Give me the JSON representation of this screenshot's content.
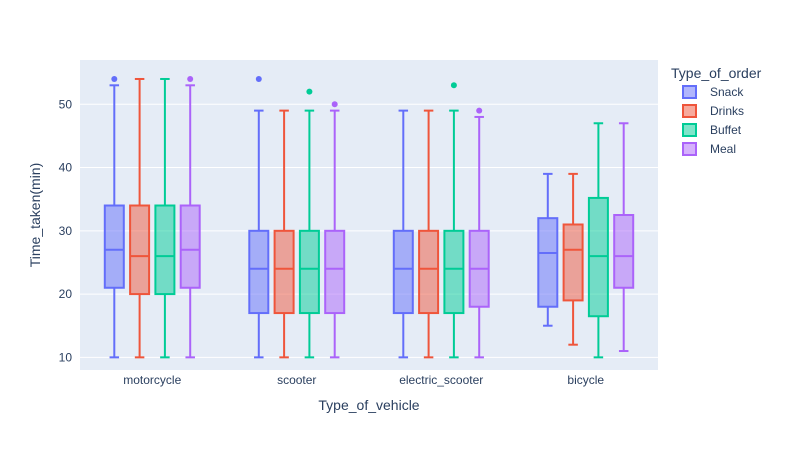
{
  "chart_data": {
    "type": "box",
    "title": "",
    "xlabel": "Type_of_vehicle",
    "ylabel": "Time_taken(min)",
    "ylim": [
      8,
      57
    ],
    "yticks": [
      10,
      20,
      30,
      40,
      50
    ],
    "grid": true,
    "legend": {
      "title": "Type_of_order",
      "placement": "right"
    },
    "categories": [
      "motorcycle",
      "scooter",
      "electric_scooter",
      "bicycle"
    ],
    "series": [
      {
        "name": "Snack",
        "color": "#636efa",
        "boxes": [
          {
            "min": 10,
            "q1": 21,
            "median": 27,
            "q3": 34,
            "max": 53,
            "outliers": [
              54
            ]
          },
          {
            "min": 10,
            "q1": 17,
            "median": 24,
            "q3": 30,
            "max": 49,
            "outliers": [
              54
            ]
          },
          {
            "min": 10,
            "q1": 17,
            "median": 24,
            "q3": 30,
            "max": 49,
            "outliers": []
          },
          {
            "min": 15,
            "q1": 18,
            "median": 26.5,
            "q3": 32,
            "max": 39,
            "outliers": []
          }
        ]
      },
      {
        "name": "Drinks",
        "color": "#ef553b",
        "boxes": [
          {
            "min": 10,
            "q1": 20,
            "median": 26,
            "q3": 34,
            "max": 54,
            "outliers": []
          },
          {
            "min": 10,
            "q1": 17,
            "median": 24,
            "q3": 30,
            "max": 49,
            "outliers": []
          },
          {
            "min": 10,
            "q1": 17,
            "median": 24,
            "q3": 30,
            "max": 49,
            "outliers": []
          },
          {
            "min": 12,
            "q1": 19,
            "median": 27,
            "q3": 31,
            "max": 39,
            "outliers": []
          }
        ]
      },
      {
        "name": "Buffet",
        "color": "#00cc96",
        "boxes": [
          {
            "min": 10,
            "q1": 20,
            "median": 26,
            "q3": 34,
            "max": 54,
            "outliers": []
          },
          {
            "min": 10,
            "q1": 17,
            "median": 24,
            "q3": 30,
            "max": 49,
            "outliers": [
              52
            ]
          },
          {
            "min": 10,
            "q1": 17,
            "median": 24,
            "q3": 30,
            "max": 49,
            "outliers": [
              53
            ]
          },
          {
            "min": 10,
            "q1": 16.5,
            "median": 26,
            "q3": 35.2,
            "max": 47,
            "outliers": []
          }
        ]
      },
      {
        "name": "Meal",
        "color": "#ab63fa",
        "boxes": [
          {
            "min": 10,
            "q1": 21,
            "median": 27,
            "q3": 34,
            "max": 53,
            "outliers": [
              54
            ]
          },
          {
            "min": 10,
            "q1": 17,
            "median": 24,
            "q3": 30,
            "max": 49,
            "outliers": [
              50
            ]
          },
          {
            "min": 10,
            "q1": 18,
            "median": 24,
            "q3": 30,
            "max": 48,
            "outliers": [
              49
            ]
          },
          {
            "min": 11,
            "q1": 21,
            "median": 26,
            "q3": 32.5,
            "max": 47,
            "outliers": []
          }
        ]
      }
    ]
  }
}
